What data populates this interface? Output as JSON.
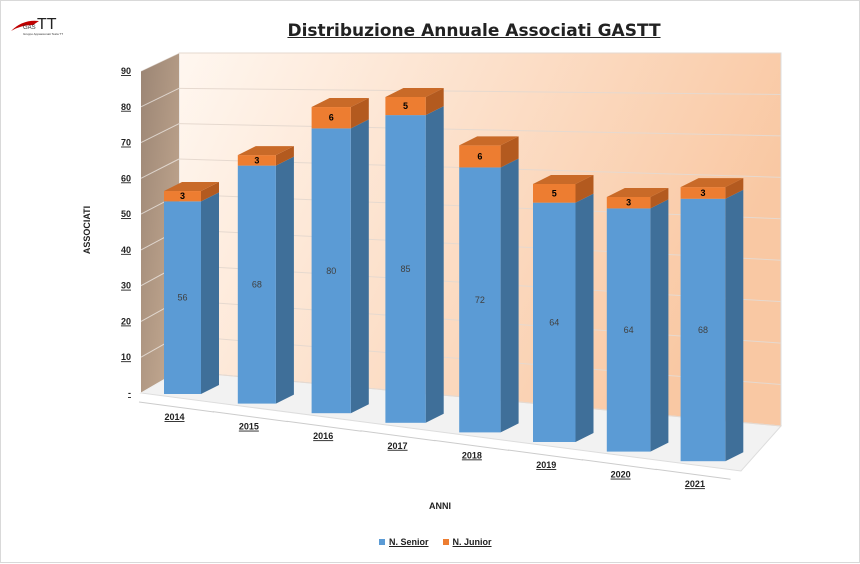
{
  "logo": {
    "text": "GAS TT",
    "subtitle": "Gruppo Appassionati Tesla TT"
  },
  "chart_data": {
    "type": "bar",
    "stacked": true,
    "three_d": true,
    "title": "Distribuzione Annuale Associati GASTT",
    "xlabel": "ANNI",
    "ylabel": "ASSOCIATI",
    "ylim": [
      0,
      90
    ],
    "yticks": [
      "-",
      "10",
      "20",
      "30",
      "40",
      "50",
      "60",
      "70",
      "80",
      "90"
    ],
    "categories": [
      "2014",
      "2015",
      "2016",
      "2017",
      "2018",
      "2019",
      "2020",
      "2021"
    ],
    "series": [
      {
        "name": "N. Senior",
        "color": "#5b9bd5",
        "values": [
          56,
          68,
          80,
          85,
          72,
          64,
          64,
          68
        ]
      },
      {
        "name": "N. Junior",
        "color": "#ed7d31",
        "values": [
          3,
          3,
          6,
          5,
          6,
          5,
          3,
          3
        ]
      }
    ],
    "legend": "bottom",
    "grid": true
  }
}
